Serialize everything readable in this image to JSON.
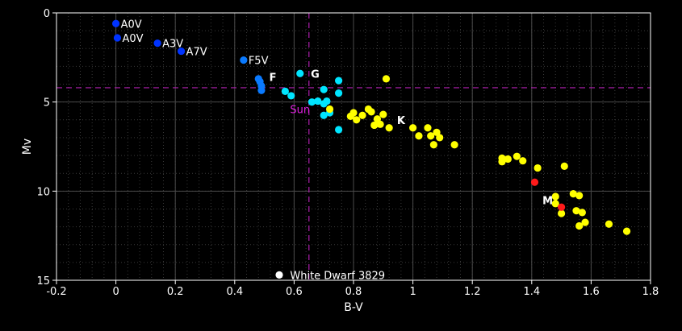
{
  "chart_data": {
    "type": "scatter",
    "title": "",
    "xlabel": "B-V",
    "ylabel": "Mv",
    "xlim": [
      -0.2,
      1.8
    ],
    "ylim": [
      0,
      15
    ],
    "y_inverted": true,
    "grid": true,
    "xticks": [
      "-0.2",
      "0",
      "0.2",
      "0.4",
      "0.6",
      "0.8",
      "1",
      "1.2",
      "1.4",
      "1.6",
      "1.8"
    ],
    "yticks": [
      "0",
      "5",
      "10",
      "15"
    ],
    "reference_lines": {
      "x": 0.65,
      "y": 4.2,
      "color": "#b020b0"
    },
    "series": [
      {
        "color": "#0033ff",
        "points": [
          [
            0.0,
            0.6
          ],
          [
            0.005,
            1.4
          ],
          [
            0.14,
            1.7
          ],
          [
            0.22,
            2.15
          ]
        ]
      },
      {
        "color": "#0a7aff",
        "points": [
          [
            0.43,
            2.65
          ],
          [
            0.48,
            3.7
          ],
          [
            0.485,
            3.85
          ],
          [
            0.49,
            4.1
          ],
          [
            0.49,
            4.35
          ]
        ]
      },
      {
        "color": "#00e5ff",
        "points": [
          [
            0.57,
            4.4
          ],
          [
            0.59,
            4.65
          ],
          [
            0.62,
            3.4
          ],
          [
            0.66,
            5.0
          ],
          [
            0.68,
            4.95
          ],
          [
            0.7,
            5.1
          ],
          [
            0.7,
            5.75
          ],
          [
            0.7,
            4.3
          ],
          [
            0.71,
            4.95
          ],
          [
            0.72,
            5.6
          ],
          [
            0.75,
            4.5
          ],
          [
            0.75,
            6.55
          ],
          [
            0.75,
            3.8
          ]
        ]
      },
      {
        "color": "#ffff00",
        "points": [
          [
            0.72,
            5.4
          ],
          [
            0.79,
            5.8
          ],
          [
            0.8,
            5.6
          ],
          [
            0.81,
            6.0
          ],
          [
            0.83,
            5.75
          ],
          [
            0.85,
            5.4
          ],
          [
            0.86,
            5.55
          ],
          [
            0.87,
            6.3
          ],
          [
            0.88,
            5.95
          ],
          [
            0.89,
            6.25
          ],
          [
            0.9,
            5.7
          ],
          [
            0.91,
            3.7
          ],
          [
            0.92,
            6.45
          ],
          [
            1.0,
            6.45
          ],
          [
            1.02,
            6.9
          ],
          [
            1.05,
            6.45
          ],
          [
            1.06,
            6.9
          ],
          [
            1.07,
            7.4
          ],
          [
            1.08,
            6.7
          ],
          [
            1.09,
            7.0
          ],
          [
            1.14,
            7.4
          ],
          [
            1.3,
            8.15
          ],
          [
            1.3,
            8.35
          ],
          [
            1.32,
            8.2
          ],
          [
            1.35,
            8.05
          ],
          [
            1.37,
            8.3
          ],
          [
            1.42,
            8.7
          ],
          [
            1.48,
            10.3
          ],
          [
            1.48,
            10.7
          ],
          [
            1.5,
            11.25
          ],
          [
            1.51,
            8.6
          ],
          [
            1.54,
            10.15
          ],
          [
            1.55,
            11.1
          ],
          [
            1.56,
            10.25
          ],
          [
            1.56,
            11.95
          ],
          [
            1.57,
            11.2
          ],
          [
            1.58,
            11.75
          ],
          [
            1.66,
            11.85
          ],
          [
            1.72,
            12.25
          ]
        ]
      },
      {
        "color": "#ff1a1a",
        "points": [
          [
            1.41,
            9.5
          ],
          [
            1.5,
            10.9
          ]
        ]
      },
      {
        "color": "#ffffff",
        "points": [
          [
            0.55,
            14.7
          ]
        ]
      }
    ],
    "annotations": [
      {
        "text": "A0V",
        "x": 0.0,
        "y": 0.6,
        "style": "plain"
      },
      {
        "text": "A0V",
        "x": 0.005,
        "y": 1.4,
        "style": "plain"
      },
      {
        "text": "A3V",
        "x": 0.14,
        "y": 1.7,
        "style": "plain"
      },
      {
        "text": "A7V",
        "x": 0.22,
        "y": 2.15,
        "style": "plain"
      },
      {
        "text": "F5V",
        "x": 0.43,
        "y": 2.65,
        "style": "plain"
      },
      {
        "text": "F",
        "x": 0.5,
        "y": 3.6,
        "style": "bold"
      },
      {
        "text": "G",
        "x": 0.64,
        "y": 3.4,
        "style": "bold"
      },
      {
        "text": "Sun",
        "x": 0.57,
        "y": 5.4,
        "style": "sun"
      },
      {
        "text": "K",
        "x": 0.93,
        "y": 6.0,
        "style": "bold"
      },
      {
        "text": "M",
        "x": 1.42,
        "y": 10.5,
        "style": "bold"
      },
      {
        "text": "White Dwarf 3829",
        "x": 0.57,
        "y": 14.7,
        "style": "plain"
      }
    ]
  }
}
